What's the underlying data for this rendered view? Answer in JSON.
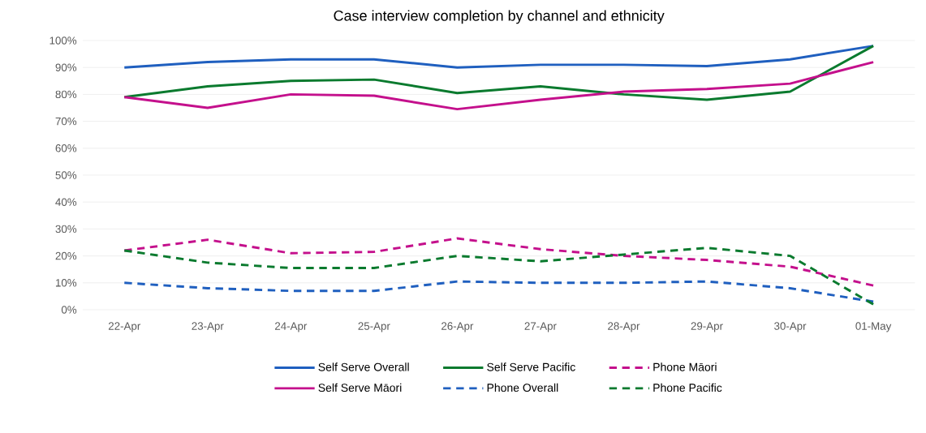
{
  "chart_data": {
    "type": "line",
    "title": "Case interview completion by channel and ethnicity",
    "categories": [
      "22-Apr",
      "23-Apr",
      "24-Apr",
      "25-Apr",
      "26-Apr",
      "27-Apr",
      "28-Apr",
      "29-Apr",
      "30-Apr",
      "01-May"
    ],
    "series": [
      {
        "name": "Self Serve Overall",
        "color": "#1f5fbf",
        "line_style": "solid",
        "values": [
          90,
          92,
          93,
          93,
          90,
          91,
          91,
          90.5,
          93,
          98
        ]
      },
      {
        "name": "Self Serve Pacific",
        "color": "#0a7a2e",
        "line_style": "solid",
        "values": [
          79,
          83,
          85,
          85.5,
          80.5,
          83,
          80,
          78,
          81,
          98
        ]
      },
      {
        "name": "Phone Māori",
        "color": "#c4108c",
        "line_style": "dashed",
        "values": [
          22,
          26,
          21,
          21.5,
          26.5,
          22.5,
          20,
          18.5,
          16,
          9
        ]
      },
      {
        "name": "Self Serve Māori",
        "color": "#c4108c",
        "line_style": "solid",
        "values": [
          79,
          75,
          80,
          79.5,
          74.5,
          78,
          81,
          82,
          84,
          92
        ]
      },
      {
        "name": "Phone Overall",
        "color": "#1f5fbf",
        "line_style": "dashed",
        "values": [
          10,
          8,
          7,
          7,
          10.5,
          10,
          10,
          10.5,
          8,
          3
        ]
      },
      {
        "name": "Phone Pacific",
        "color": "#0a7a2e",
        "line_style": "dashed",
        "values": [
          22,
          17.5,
          15.5,
          15.5,
          20,
          18,
          20.5,
          23,
          20,
          2
        ]
      }
    ],
    "ylim": [
      0,
      100
    ],
    "yticks": [
      {
        "value": 0,
        "label": "0%"
      },
      {
        "value": 10,
        "label": "10%"
      },
      {
        "value": 20,
        "label": "20%"
      },
      {
        "value": 30,
        "label": "30%"
      },
      {
        "value": 40,
        "label": "40%"
      },
      {
        "value": 50,
        "label": "50%"
      },
      {
        "value": 60,
        "label": "60%"
      },
      {
        "value": 70,
        "label": "70%"
      },
      {
        "value": 80,
        "label": "80%"
      },
      {
        "value": 90,
        "label": "90%"
      },
      {
        "value": 100,
        "label": "100%"
      }
    ],
    "grid": "y",
    "legend": "bottom",
    "marker": "none"
  }
}
